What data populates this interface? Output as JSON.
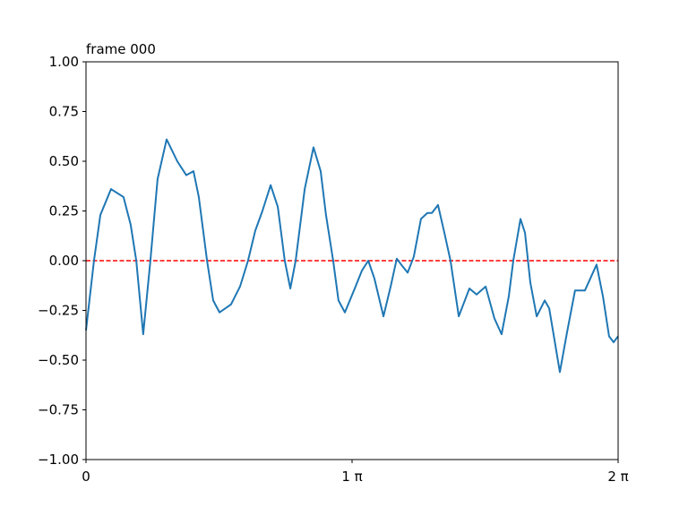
{
  "chart_data": {
    "type": "line",
    "title": "frame 000",
    "x": [
      0,
      0.03,
      0.054,
      0.094,
      0.141,
      0.168,
      0.189,
      0.215,
      0.242,
      0.269,
      0.303,
      0.343,
      0.377,
      0.404,
      0.424,
      0.455,
      0.478,
      0.502,
      0.545,
      0.579,
      0.609,
      0.636,
      0.663,
      0.694,
      0.721,
      0.747,
      0.768,
      0.788,
      0.822,
      0.855,
      0.882,
      0.902,
      0.929,
      0.949,
      0.973,
      1.01,
      1.037,
      1.061,
      1.084,
      1.118,
      1.145,
      1.168,
      1.185,
      1.209,
      1.232,
      1.259,
      1.283,
      1.3,
      1.323,
      1.347,
      1.37,
      1.401,
      1.441,
      1.468,
      1.502,
      1.535,
      1.562,
      1.589,
      1.606,
      1.633,
      1.65,
      1.67,
      1.694,
      1.724,
      1.741,
      1.781,
      1.808,
      1.838,
      1.875,
      1.919,
      1.943,
      1.966,
      1.983,
      2.0
    ],
    "series": [
      {
        "color": "#1f77b4",
        "values": [
          -0.35,
          0.0,
          0.23,
          0.36,
          0.32,
          0.18,
          0.0,
          -0.37,
          0.0,
          0.41,
          0.61,
          0.5,
          0.43,
          0.45,
          0.32,
          0.0,
          -0.2,
          -0.26,
          -0.22,
          -0.13,
          0.0,
          0.15,
          0.25,
          0.38,
          0.27,
          0.0,
          -0.14,
          0.0,
          0.36,
          0.57,
          0.45,
          0.23,
          0.0,
          -0.2,
          -0.26,
          -0.14,
          -0.05,
          0.0,
          -0.09,
          -0.28,
          -0.13,
          0.01,
          -0.02,
          -0.06,
          0.02,
          0.21,
          0.24,
          0.24,
          0.28,
          0.14,
          0.0,
          -0.28,
          -0.14,
          -0.17,
          -0.13,
          -0.29,
          -0.37,
          -0.18,
          0.0,
          0.21,
          0.14,
          -0.11,
          -0.28,
          -0.2,
          -0.24,
          -0.56,
          -0.36,
          -0.15,
          -0.15,
          -0.02,
          -0.18,
          -0.38,
          -0.41,
          -0.38
        ]
      }
    ],
    "xlim": [
      0,
      2
    ],
    "xticks": [
      0,
      {
        "value": 1,
        "label": "1 π"
      },
      {
        "value": 2,
        "label": "2 π"
      }
    ],
    "ylim": [
      -1,
      1
    ],
    "yticks": [
      {
        "value": -1,
        "label": "−1.00"
      },
      {
        "value": -0.75,
        "label": "−0.75"
      },
      {
        "value": -0.5,
        "label": "−0.50"
      },
      {
        "value": -0.25,
        "label": "−0.25"
      },
      {
        "value": 0,
        "label": "0.00"
      },
      {
        "value": 0.25,
        "label": "0.25"
      },
      {
        "value": 0.5,
        "label": "0.50"
      },
      {
        "value": 0.75,
        "label": "0.75"
      },
      {
        "value": 1,
        "label": "1.00"
      }
    ],
    "hline": {
      "value": 0,
      "color": "#ff0000"
    }
  }
}
